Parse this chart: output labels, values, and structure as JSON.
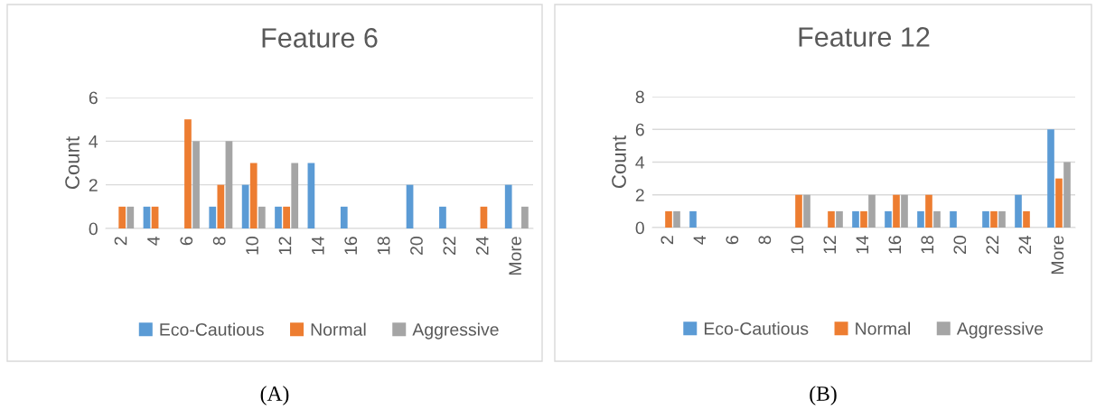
{
  "chart_data": [
    {
      "type": "bar",
      "title": "Feature 6",
      "ylabel": "Count",
      "categories": [
        "2",
        "4",
        "6",
        "8",
        "10",
        "12",
        "14",
        "16",
        "18",
        "20",
        "22",
        "24",
        "More"
      ],
      "ylim": [
        0,
        6
      ],
      "yticks": [
        0,
        2,
        4,
        6
      ],
      "grid": "y",
      "legend": "bottom",
      "annotations": [
        "(A)"
      ],
      "series": [
        {
          "name": "Eco-Cautious",
          "color": "#5b9bd5",
          "values": [
            0,
            1,
            0,
            1,
            2,
            1,
            3,
            1,
            0,
            2,
            1,
            0,
            2
          ]
        },
        {
          "name": "Normal",
          "color": "#ed7d31",
          "values": [
            1,
            1,
            5,
            2,
            3,
            1,
            0,
            0,
            0,
            0,
            0,
            1,
            0
          ]
        },
        {
          "name": "Aggressive",
          "color": "#a5a5a5",
          "values": [
            1,
            0,
            4,
            4,
            1,
            3,
            0,
            0,
            0,
            0,
            0,
            0,
            1
          ]
        }
      ]
    },
    {
      "type": "bar",
      "title": "Feature 12",
      "ylabel": "Count",
      "categories": [
        "2",
        "4",
        "6",
        "8",
        "10",
        "12",
        "14",
        "16",
        "18",
        "20",
        "22",
        "24",
        "More"
      ],
      "ylim": [
        0,
        8
      ],
      "yticks": [
        0,
        2,
        4,
        6,
        8
      ],
      "grid": "y",
      "legend": "bottom",
      "annotations": [
        "(B)"
      ],
      "series": [
        {
          "name": "Eco-Cautious",
          "color": "#5b9bd5",
          "values": [
            0,
            1,
            0,
            0,
            0,
            0,
            1,
            1,
            1,
            1,
            1,
            2,
            6
          ]
        },
        {
          "name": "Normal",
          "color": "#ed7d31",
          "values": [
            1,
            0,
            0,
            0,
            2,
            1,
            1,
            2,
            2,
            0,
            1,
            1,
            3
          ]
        },
        {
          "name": "Aggressive",
          "color": "#a5a5a5",
          "values": [
            1,
            0,
            0,
            0,
            2,
            1,
            2,
            2,
            1,
            0,
            1,
            0,
            4
          ]
        }
      ]
    }
  ]
}
